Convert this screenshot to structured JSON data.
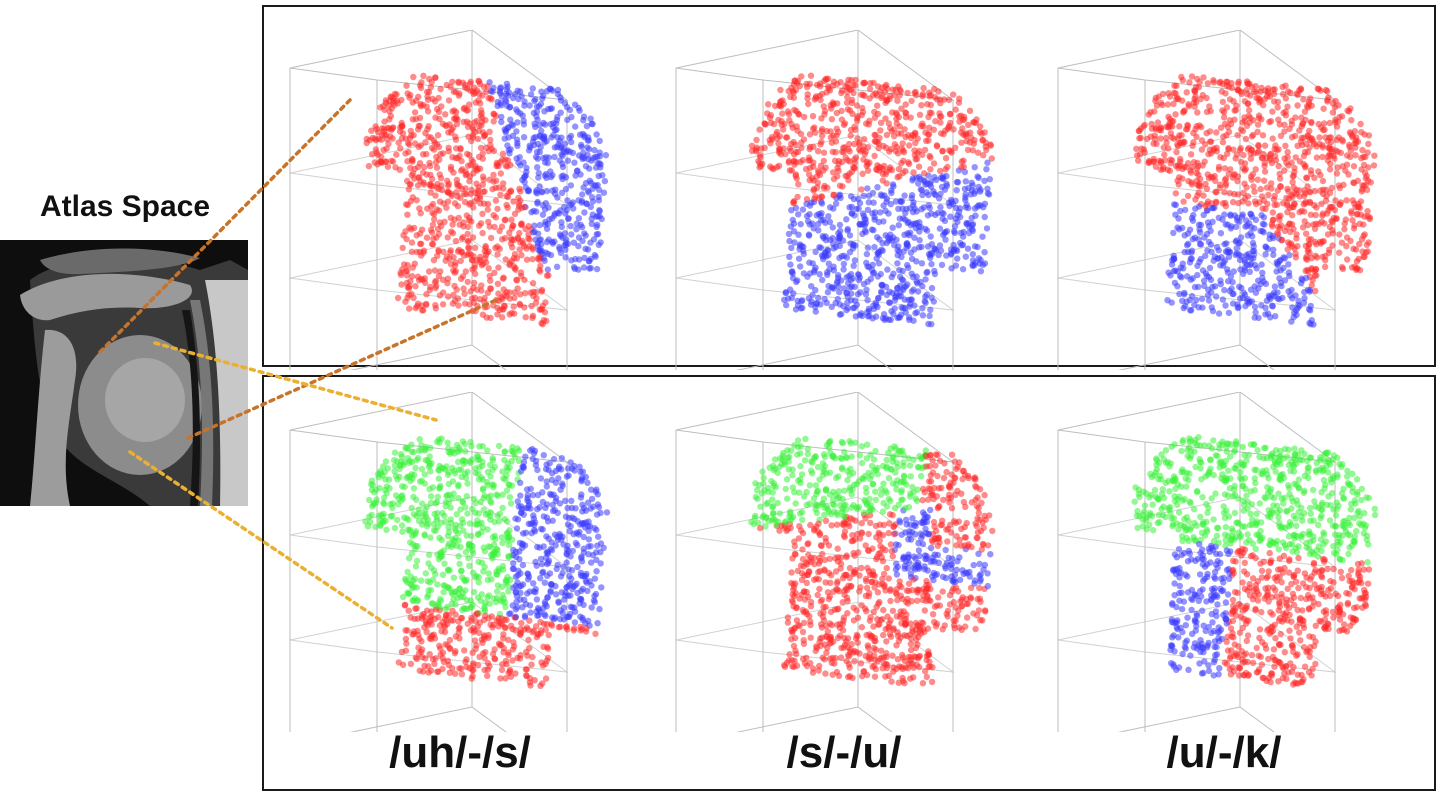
{
  "atlas": {
    "title": "Atlas Space",
    "image_icon": "mri-midsagittal-vocal-tract"
  },
  "colors": {
    "red": "#ff2a2a",
    "blue": "#3a3aff",
    "green": "#3af03a",
    "orange_link": "#c8732a",
    "yellow_link": "#e9b031",
    "frame": "#1a1a1a",
    "box_lines": "#bdbdbd"
  },
  "rows": [
    {
      "name": "two-cluster",
      "cluster_colors": [
        "red",
        "blue"
      ]
    },
    {
      "name": "three-cluster",
      "cluster_colors": [
        "red",
        "blue",
        "green"
      ]
    }
  ],
  "columns": [
    {
      "label": "/uh/-/s/"
    },
    {
      "label": "/s/-/u/"
    },
    {
      "label": "/u/-/k/"
    }
  ]
}
